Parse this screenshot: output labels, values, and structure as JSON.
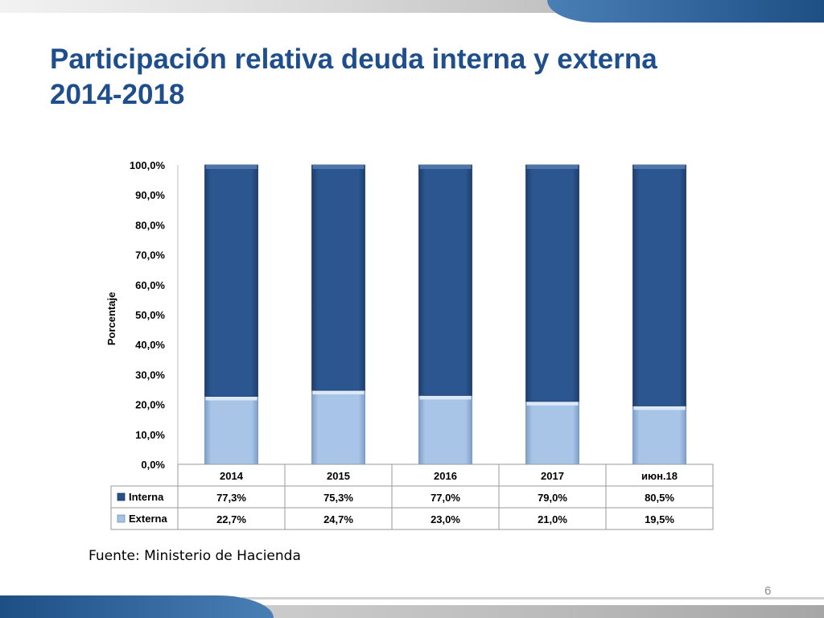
{
  "slide": {
    "title_line1": "Participación relativa deuda interna y externa",
    "title_line2": "2014-2018",
    "source": "Fuente: Ministerio de Hacienda",
    "page_number": "6"
  },
  "colors": {
    "interna": "#27508a",
    "externa": "#a4c2e6",
    "title": "#1f4e8c"
  },
  "chart_data": {
    "type": "bar",
    "stacked": true,
    "categories": [
      "2014",
      "2015",
      "2016",
      "2017",
      "июн.18"
    ],
    "series": [
      {
        "name": "Externa",
        "values": [
          22.7,
          24.7,
          23.0,
          21.0,
          19.5
        ],
        "labels": [
          "22,7%",
          "24,7%",
          "23,0%",
          "21,0%",
          "19,5%"
        ],
        "color": "#a4c2e6"
      },
      {
        "name": "Interna",
        "values": [
          77.3,
          75.3,
          77.0,
          79.0,
          80.5
        ],
        "labels": [
          "77,3%",
          "75,3%",
          "77,0%",
          "79,0%",
          "80,5%"
        ],
        "color": "#27508a"
      }
    ],
    "ylabel": "Porcentaje",
    "ylim": [
      0,
      100
    ],
    "yticks": [
      "0,0%",
      "10,0%",
      "20,0%",
      "30,0%",
      "40,0%",
      "50,0%",
      "60,0%",
      "70,0%",
      "80,0%",
      "90,0%",
      "100,0%"
    ],
    "table_rows": [
      {
        "name": "Interna",
        "labels": [
          "77,3%",
          "75,3%",
          "77,0%",
          "79,0%",
          "80,5%"
        ]
      },
      {
        "name": "Externa",
        "labels": [
          "22,7%",
          "24,7%",
          "23,0%",
          "21,0%",
          "19,5%"
        ]
      }
    ]
  }
}
